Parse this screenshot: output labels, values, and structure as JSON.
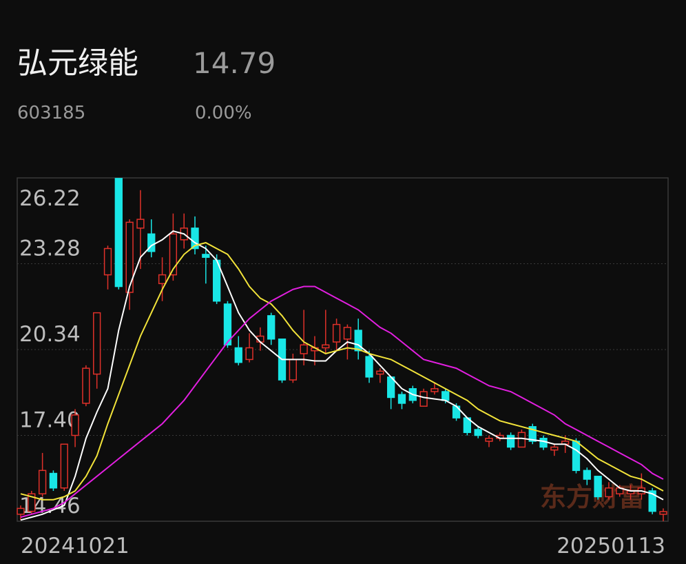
{
  "header": {
    "name": "弘元绿能",
    "price": "14.79",
    "code": "603185",
    "change": "0.00%"
  },
  "watermark": "东方财富",
  "chart_data": {
    "type": "candlestick",
    "categories": [
      "20241021",
      null,
      null,
      null,
      null,
      null,
      null,
      null,
      null,
      null,
      null,
      null,
      null,
      null,
      null,
      null,
      null,
      null,
      null,
      null,
      null,
      null,
      null,
      null,
      null,
      null,
      null,
      null,
      null,
      null,
      null,
      null,
      null,
      null,
      null,
      null,
      null,
      null,
      null,
      null,
      null,
      null,
      null,
      null,
      null,
      null,
      null,
      null,
      null,
      null,
      null,
      null,
      null,
      null,
      null,
      null,
      null,
      null,
      null,
      "20250113"
    ],
    "open": [
      14.7,
      14.8,
      15.4,
      16.1,
      15.6,
      17.4,
      18.5,
      19.5,
      22.9,
      26.2,
      22.3,
      24.5,
      24.3,
      22.6,
      22.9,
      24.1,
      24.5,
      23.6,
      23.4,
      21.9,
      20.4,
      20.0,
      20.6,
      21.5,
      20.7,
      19.3,
      20.2,
      20.3,
      20.4,
      20.6,
      20.7,
      21.0,
      20.1,
      19.5,
      19.4,
      18.8,
      19.0,
      18.4,
      18.9,
      18.9,
      18.4,
      18.0,
      17.6,
      17.2,
      17.3,
      17.4,
      17.0,
      17.7,
      17.3,
      16.9,
      17.1,
      17.2,
      16.2,
      16.0,
      15.3,
      15.4,
      15.4,
      15.4,
      15.5,
      14.7
    ],
    "high": [
      15.0,
      15.5,
      16.8,
      16.2,
      17.1,
      18.3,
      19.8,
      21.6,
      23.9,
      26.2,
      24.8,
      25.8,
      24.8,
      23.5,
      25.0,
      25.0,
      24.9,
      23.9,
      23.6,
      22.0,
      20.8,
      20.9,
      21.1,
      21.6,
      20.7,
      20.2,
      21.7,
      20.8,
      21.7,
      21.4,
      21.2,
      21.4,
      20.3,
      19.7,
      19.4,
      18.9,
      19.1,
      19.0,
      19.2,
      19.0,
      18.5,
      18.0,
      17.7,
      17.4,
      17.5,
      17.5,
      17.6,
      17.8,
      17.4,
      17.1,
      17.4,
      17.3,
      16.3,
      16.0,
      15.8,
      15.7,
      15.7,
      16.1,
      15.6,
      14.9
    ],
    "low": [
      14.5,
      14.7,
      15.3,
      15.5,
      15.5,
      17.0,
      18.4,
      19.0,
      22.4,
      22.4,
      21.7,
      23.1,
      23.5,
      22.0,
      22.7,
      23.8,
      23.6,
      22.6,
      21.9,
      20.4,
      19.8,
      19.9,
      20.3,
      20.5,
      19.2,
      19.2,
      19.8,
      19.8,
      20.2,
      20.3,
      20.0,
      20.0,
      19.2,
      19.2,
      18.3,
      18.3,
      18.5,
      18.4,
      18.8,
      18.5,
      17.9,
      17.4,
      17.3,
      17.0,
      17.2,
      16.9,
      17.0,
      17.1,
      16.9,
      16.7,
      16.8,
      16.1,
      15.7,
      15.2,
      15.2,
      15.3,
      15.2,
      15.2,
      14.7,
      14.46
    ],
    "close": [
      14.9,
      15.4,
      16.2,
      15.6,
      17.1,
      18.1,
      19.7,
      21.6,
      23.8,
      22.5,
      24.7,
      24.8,
      23.7,
      22.9,
      24.3,
      24.5,
      23.8,
      23.5,
      22.0,
      20.5,
      19.9,
      20.4,
      20.8,
      20.7,
      19.3,
      20.0,
      20.5,
      20.4,
      20.5,
      21.2,
      21.1,
      20.3,
      19.4,
      19.6,
      18.7,
      18.5,
      18.6,
      18.9,
      19.0,
      18.6,
      18.0,
      17.5,
      17.4,
      17.3,
      17.4,
      17.0,
      17.5,
      17.2,
      17.0,
      17.0,
      17.2,
      16.2,
      15.9,
      15.3,
      15.6,
      15.6,
      15.5,
      15.6,
      14.8,
      14.79
    ],
    "up_color": "#e0312a",
    "down_color": "#19e6e6",
    "series": [
      {
        "color": "#ffffff",
        "values": [
          14.5,
          14.6,
          14.7,
          14.85,
          15.0,
          16.0,
          17.3,
          18.2,
          19.0,
          21.0,
          22.5,
          23.5,
          23.9,
          24.1,
          24.4,
          24.3,
          24.0,
          23.8,
          23.4,
          22.5,
          21.6,
          21.0,
          20.6,
          20.3,
          20.0,
          20.0,
          20.0,
          19.95,
          19.95,
          20.3,
          20.6,
          20.5,
          20.2,
          19.8,
          19.4,
          19.0,
          18.8,
          18.7,
          18.65,
          18.6,
          18.4,
          18.0,
          17.7,
          17.5,
          17.3,
          17.3,
          17.3,
          17.25,
          17.2,
          17.1,
          17.1,
          16.9,
          16.6,
          16.2,
          15.9,
          15.6,
          15.5,
          15.5,
          15.4,
          15.2
        ]
      },
      {
        "color": "#f2e33a",
        "values": [
          15.4,
          15.3,
          15.2,
          15.2,
          15.3,
          15.5,
          16.0,
          16.7,
          17.8,
          18.8,
          19.8,
          20.8,
          21.6,
          22.4,
          23.1,
          23.6,
          23.9,
          24.0,
          23.8,
          23.6,
          23.1,
          22.5,
          22.1,
          21.9,
          21.5,
          21.0,
          20.6,
          20.4,
          20.2,
          20.3,
          20.4,
          20.35,
          20.2,
          20.1,
          20.0,
          19.8,
          19.6,
          19.4,
          19.2,
          19.0,
          18.8,
          18.6,
          18.3,
          18.1,
          17.9,
          17.8,
          17.7,
          17.6,
          17.5,
          17.4,
          17.3,
          17.2,
          16.9,
          16.6,
          16.4,
          16.2,
          16.0,
          15.9,
          15.7,
          15.5
        ]
      },
      {
        "color": "#e21fe0",
        "values": [
          14.6,
          14.7,
          14.8,
          14.9,
          15.1,
          15.4,
          15.7,
          16.0,
          16.3,
          16.6,
          16.9,
          17.2,
          17.5,
          17.8,
          18.2,
          18.6,
          19.1,
          19.6,
          20.1,
          20.6,
          21.0,
          21.4,
          21.7,
          22.0,
          22.2,
          22.4,
          22.5,
          22.5,
          22.3,
          22.1,
          21.9,
          21.7,
          21.4,
          21.1,
          20.9,
          20.6,
          20.3,
          20.0,
          19.9,
          19.8,
          19.7,
          19.5,
          19.3,
          19.1,
          19.0,
          18.9,
          18.7,
          18.5,
          18.3,
          18.1,
          17.8,
          17.6,
          17.4,
          17.2,
          17.0,
          16.8,
          16.6,
          16.4,
          16.1,
          15.9
        ]
      }
    ],
    "ylim": [
      14.46,
      26.22
    ],
    "yticks": [
      14.46,
      {
        "value": 17.4,
        "label": "17.40"
      },
      20.34,
      23.28,
      26.22
    ],
    "grid": true
  }
}
